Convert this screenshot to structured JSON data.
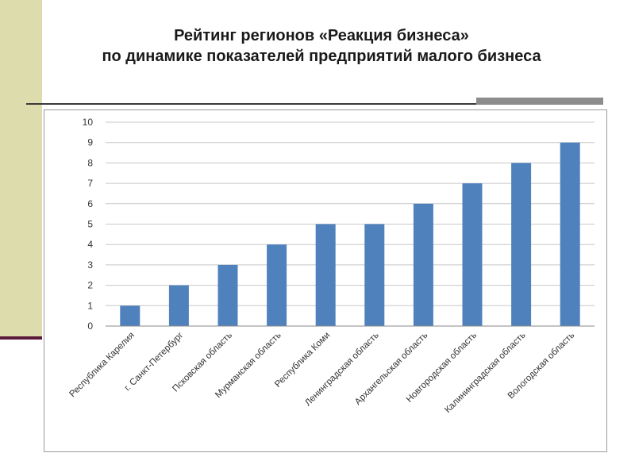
{
  "slide": {
    "title_line1": "Рейтинг регионов «Реакция бизнеса»",
    "title_line2": "по динамике показателей предприятий малого бизнеса"
  },
  "colors": {
    "bar": "#4f81bd",
    "side_band": "#dcdcad",
    "side_rule": "#5a1a3a",
    "rule_thick": "#8c8c8c"
  },
  "chart_data": {
    "type": "bar",
    "title": "",
    "xlabel": "",
    "ylabel": "",
    "categories": [
      "Республика Карелия",
      "г. Санкт-Петербург",
      "Псковская область",
      "Мурманская область",
      "Республика Коми",
      "Ленинградская область",
      "Архангельская область",
      "Новгородская область",
      "Калининградская область",
      "Вологодская область"
    ],
    "values": [
      1,
      2,
      3,
      4,
      5,
      5,
      6,
      7,
      8,
      9
    ],
    "ylim": [
      0,
      10
    ],
    "yticks": [
      0,
      1,
      2,
      3,
      4,
      5,
      6,
      7,
      8,
      9,
      10
    ],
    "grid": true,
    "legend": "none"
  }
}
